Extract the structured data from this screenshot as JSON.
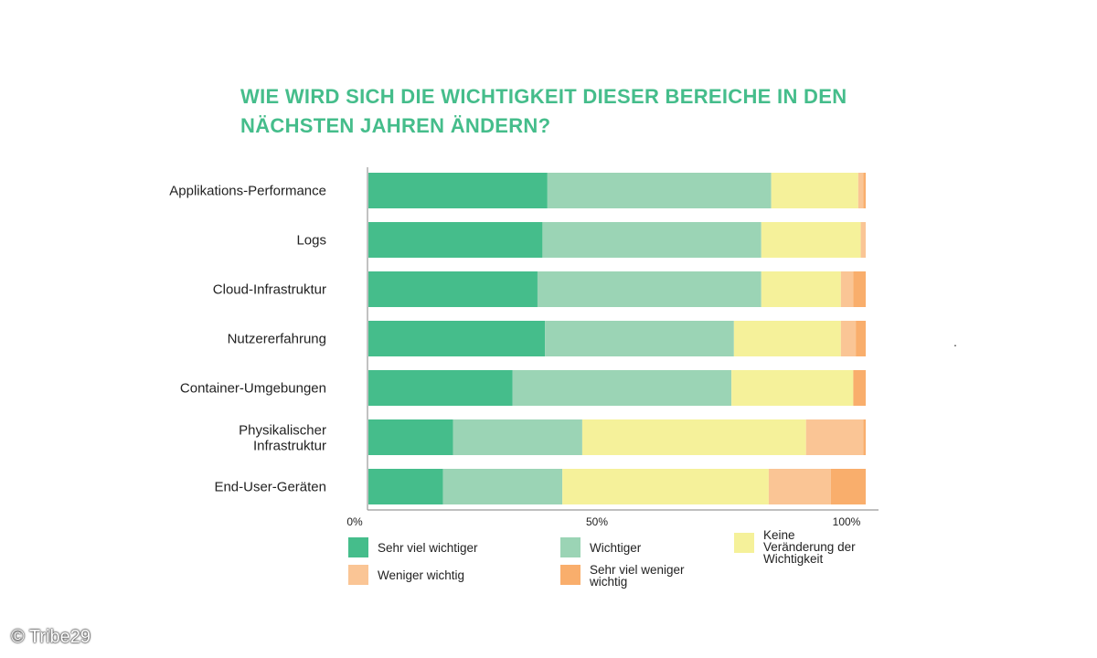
{
  "chart_data": {
    "type": "bar",
    "orientation": "horizontal",
    "stacked": true,
    "title": "WIE WIRD SICH DIE WICHTIGKEIT DIESER BEREICHE IN DEN NÄCHSTEN JAHREN ÄNDERN?",
    "categories": [
      "Applikations-Performance",
      "Logs",
      "Cloud-Infrastruktur",
      "Nutzererfahrung",
      "Container-Umgebungen",
      "Physikalischer Infrastruktur",
      "End-User-Geräten"
    ],
    "series": [
      {
        "name": "Sehr viel wichtiger",
        "color": "#45bd8b",
        "values": [
          36,
          35,
          34,
          35.5,
          29,
          17,
          15
        ]
      },
      {
        "name": "Wichtiger",
        "color": "#9bd4b5",
        "values": [
          45,
          44,
          45,
          38,
          44,
          26,
          24
        ]
      },
      {
        "name": "Keine Veränderung der Wichtigkeit",
        "color": "#f5f19a",
        "values": [
          17.5,
          20,
          16,
          21.5,
          24.5,
          45,
          41.5
        ]
      },
      {
        "name": "Weniger wichtig",
        "color": "#fac595",
        "values": [
          1,
          1,
          2.5,
          3,
          0,
          11.5,
          12.5
        ]
      },
      {
        "name": "Sehr viel weniger wichtig",
        "color": "#f9ae6c",
        "values": [
          0.5,
          0,
          2.5,
          2,
          2.5,
          0.5,
          7
        ]
      }
    ],
    "xlim": [
      0,
      100
    ],
    "xticks": [
      "0%",
      "50%",
      "100%"
    ],
    "legend_position": "bottom",
    "grid": false
  },
  "colors": {
    "title": "#45bd8b",
    "text": "#222222",
    "axis": "#999999"
  },
  "credit": "© Tribe29",
  "stray_mark": "."
}
